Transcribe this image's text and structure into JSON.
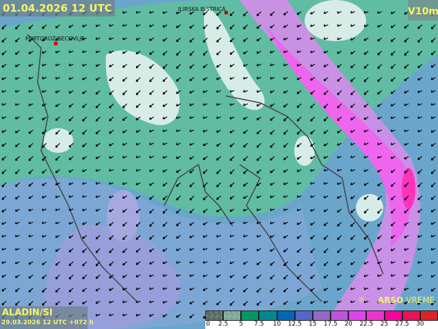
{
  "header": {
    "valid_time": "01.04.2026 12 UTC",
    "variable": "V10m"
  },
  "model": {
    "name": "ALADIN/SI",
    "run": "29.03.2026 12 UTC +072 h"
  },
  "cities": [
    {
      "name": "PORTOROZ/SECOVLJE"
    },
    {
      "name": "ILIRSKA BISTRICA"
    }
  ],
  "brand": {
    "bold": "ARSO",
    "rest": " VREME",
    "icon": "sun-icon"
  },
  "wind": {
    "prevailing_direction": "NE",
    "arrow_color": "#000000"
  },
  "legend": {
    "labels": [
      "0",
      "2.5",
      "5",
      "7.5",
      "10",
      "12.5",
      "15",
      "17.5",
      "20",
      "22.5",
      "25",
      "27.5",
      "30"
    ],
    "colors": [
      "#5a6b66",
      "#7fa898",
      "#009966",
      "#008a8f",
      "#0066b8",
      "#5566cc",
      "#9966cc",
      "#bb55dd",
      "#dd44ee",
      "#ee33cc",
      "#ff0099",
      "#ee1155",
      "#dd2222"
    ]
  }
}
